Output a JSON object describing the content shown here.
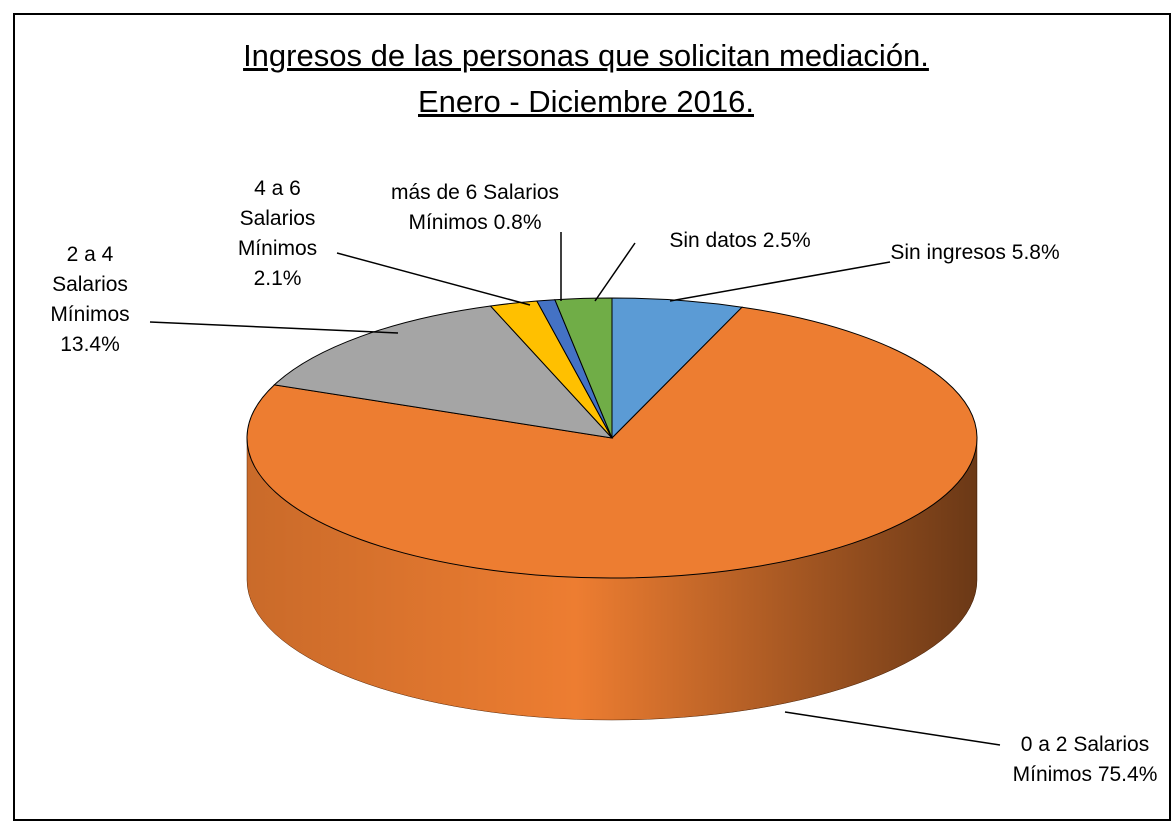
{
  "chart_data": {
    "type": "pie",
    "title": "Ingresos de las personas que solicitan mediación.",
    "subtitle": "Enero - Diciembre 2016.",
    "categories": [
      "Sin ingresos",
      "0 a 2 Salarios Mínimos",
      "2 a 4 Salarios Mínimos",
      "4 a 6 Salarios Mínimos",
      "más de 6 Salarios Mínimos",
      "Sin datos"
    ],
    "values": [
      5.8,
      75.4,
      13.4,
      2.1,
      0.8,
      2.5
    ],
    "value_labels": [
      "5.8%",
      "75.4%",
      "13.4%",
      "2.1%",
      "0.8%",
      "2.5%"
    ],
    "colors": [
      "#5b9bd5",
      "#ed7d31",
      "#a5a5a5",
      "#ffc000",
      "#4472c4",
      "#70ad47"
    ]
  }
}
